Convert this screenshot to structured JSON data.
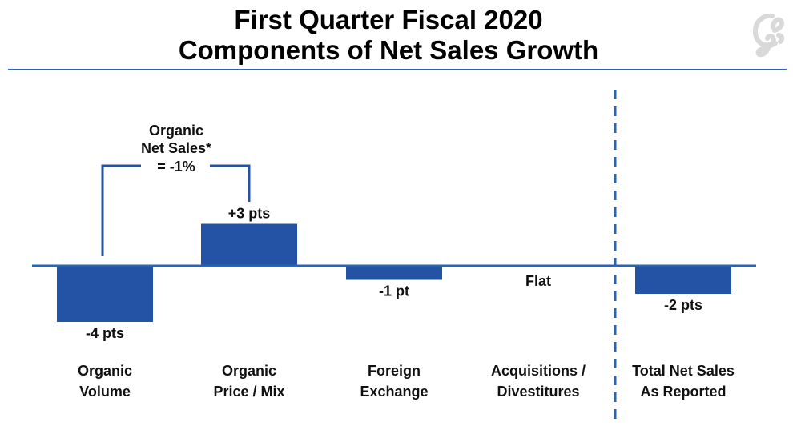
{
  "title": {
    "line1": "First Quarter Fiscal 2020",
    "line2": "Components of Net Sales Growth"
  },
  "logo": {
    "icon": "general-mills-g-logo",
    "color": "#d9d9d9"
  },
  "colors": {
    "bar": "#2453a6",
    "axis": "#2a64b0",
    "bracket": "#2453a6",
    "divider": "#2a64b0"
  },
  "chart_data": {
    "type": "bar",
    "title": "First Quarter Fiscal 2020 Components of Net Sales Growth",
    "categories": [
      {
        "line1": "Organic",
        "line2": "Volume"
      },
      {
        "line1": "Organic",
        "line2": "Price / Mix"
      },
      {
        "line1": "Foreign",
        "line2": "Exchange"
      },
      {
        "line1": "Acquisitions /",
        "line2": "Divestitures"
      },
      {
        "line1": "Total Net Sales",
        "line2": "As Reported"
      }
    ],
    "values": [
      -4,
      3,
      -1,
      0,
      -2
    ],
    "value_labels": [
      "-4 pts",
      "+3 pts",
      "-1 pt",
      "Flat",
      "-2 pts"
    ],
    "unit": "pts",
    "ylim": [
      -4,
      3
    ],
    "grid": false,
    "annotation": {
      "line1": "Organic",
      "line2": "Net Sales*",
      "line3": "= -1%",
      "spans": [
        "Organic Volume",
        "Organic Price / Mix"
      ]
    },
    "divider_before": "Total Net Sales As Reported"
  }
}
